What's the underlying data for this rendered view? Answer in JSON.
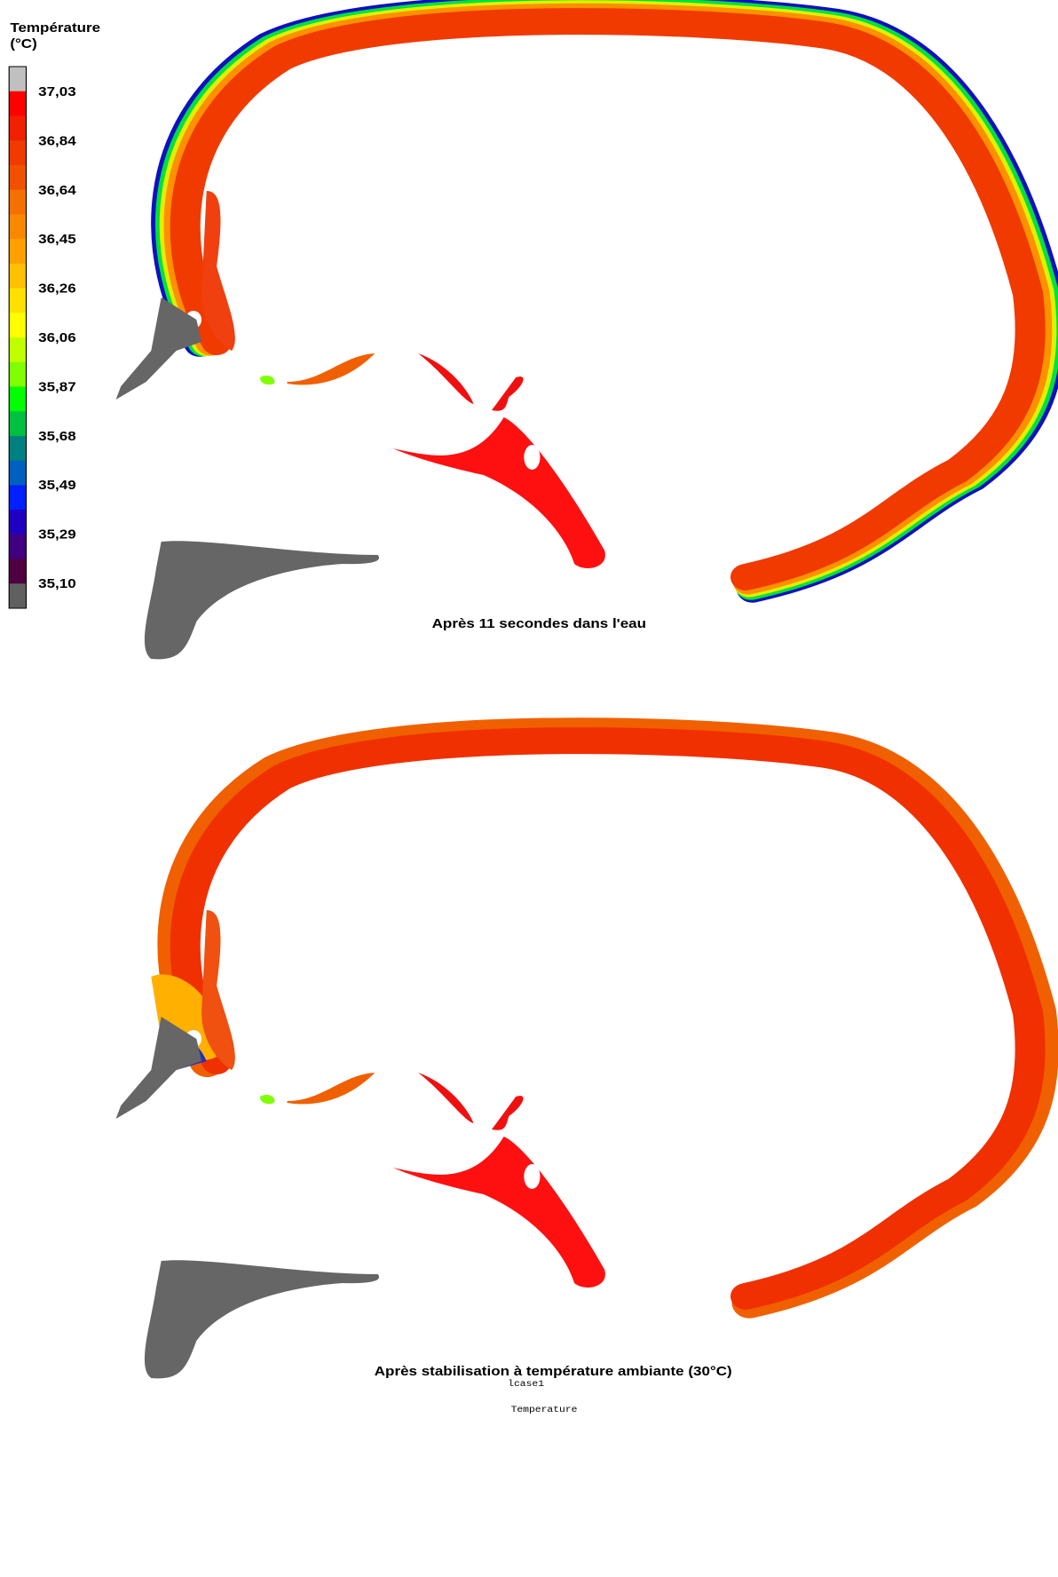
{
  "legend": {
    "title": [
      "Température",
      "(°C)"
    ],
    "labels": [
      "37,03",
      "36,84",
      "36,64",
      "36,45",
      "36,26",
      "36,06",
      "35,87",
      "35,68",
      "35,49",
      "35,29",
      "35,10"
    ],
    "colors": [
      "#c0c0c0",
      "#ff0000",
      "#f02000",
      "#f03a00",
      "#f05000",
      "#f47000",
      "#f88800",
      "#ffa000",
      "#ffc000",
      "#ffe000",
      "#ffff00",
      "#c0ff00",
      "#80ff00",
      "#00ff00",
      "#00c040",
      "#008080",
      "#0060c0",
      "#0020ff",
      "#2000c0",
      "#400080",
      "#500040",
      "#606060"
    ]
  },
  "captions": [
    "Après 11 secondes dans l'eau",
    "Après stabilisation à température ambiante (30°C)"
  ],
  "footer": {
    "case": "lcase1",
    "variable": "Temperature"
  }
}
